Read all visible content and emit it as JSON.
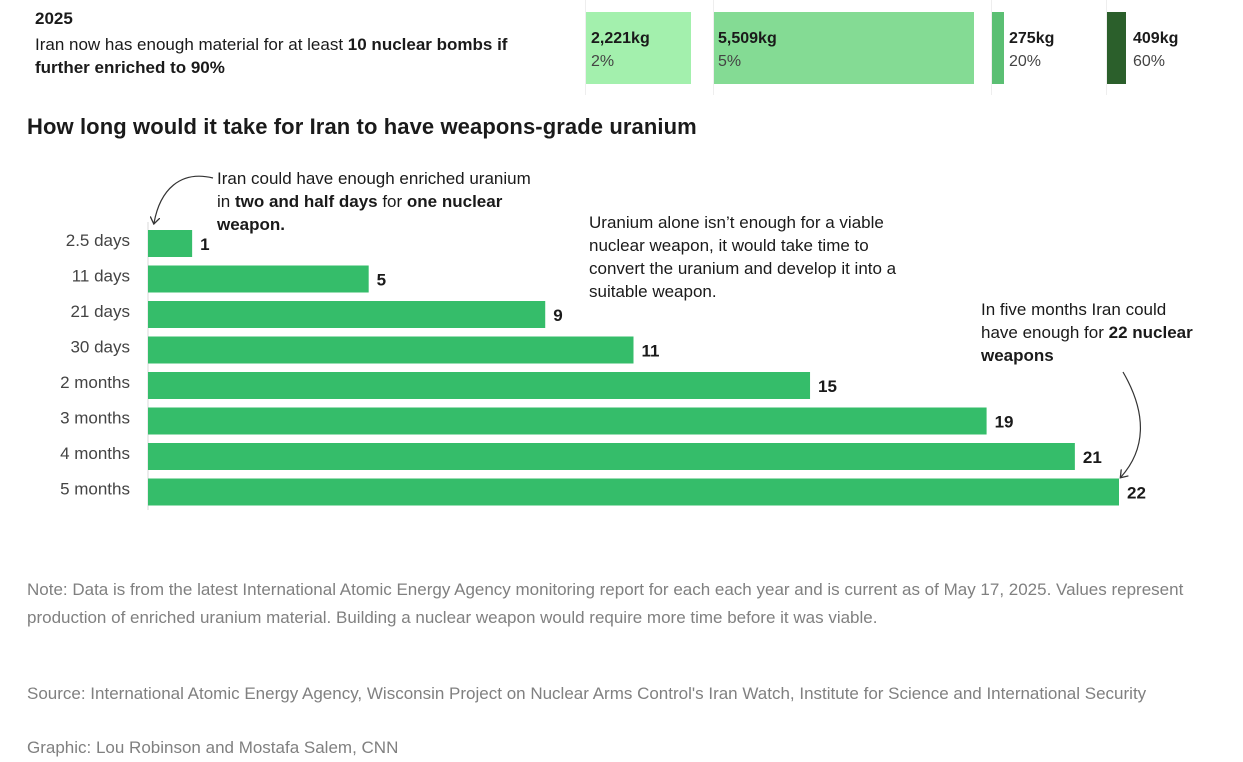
{
  "top": {
    "year": "2025",
    "text_pre": "Iran now has enough material for at least ",
    "text_bold": "10 nuclear bombs if further enriched to 90%",
    "segments": [
      {
        "kg": "2,221kg",
        "pct": "2%",
        "color": "#a3f0ad"
      },
      {
        "kg": "5,509kg",
        "pct": "5%",
        "color": "#84db94"
      },
      {
        "kg": "275kg",
        "pct": "20%",
        "color": "#5bbf73"
      },
      {
        "kg": "409kg",
        "pct": "60%",
        "color": "#2b5f2b"
      }
    ]
  },
  "title": "How long would it take for Iran to have weapons-grade uranium",
  "chart_data": {
    "type": "bar",
    "orientation": "horizontal",
    "categories": [
      "2.5 days",
      "11 days",
      "21 days",
      "30 days",
      "2 months",
      "3 months",
      "4 months",
      "5 months"
    ],
    "values": [
      1,
      5,
      9,
      11,
      15,
      19,
      21,
      22
    ],
    "title": "How long would it take for Iran to have weapons-grade uranium",
    "xlim": [
      0,
      22
    ],
    "grid": false,
    "bar_color": "#35bd6a"
  },
  "annotations": {
    "first": {
      "pre": "Iran could have enough enriched uranium in ",
      "bold": "two and half days",
      "post": " for ",
      "bold2": "one nuclear weapon."
    },
    "middle": "Uranium alone isn’t enough for a viable nuclear weapon, it would take time to convert the uranium and develop it into a suitable weapon.",
    "last": {
      "pre": "In five months Iran could have enough for ",
      "bold": "22 nuclear weapons"
    }
  },
  "note": "Note: Data is from the latest International Atomic Energy Agency monitoring report for each each year and is current as of May 17, 2025. Values represent production of enriched uranium material. Building a nuclear weapon would require more time before it was viable.",
  "source": "Source: International Atomic Energy Agency, Wisconsin Project on Nuclear Arms Control's Iran Watch, Institute for Science and International Security",
  "credit": "Graphic: Lou Robinson and Mostafa Salem, CNN"
}
